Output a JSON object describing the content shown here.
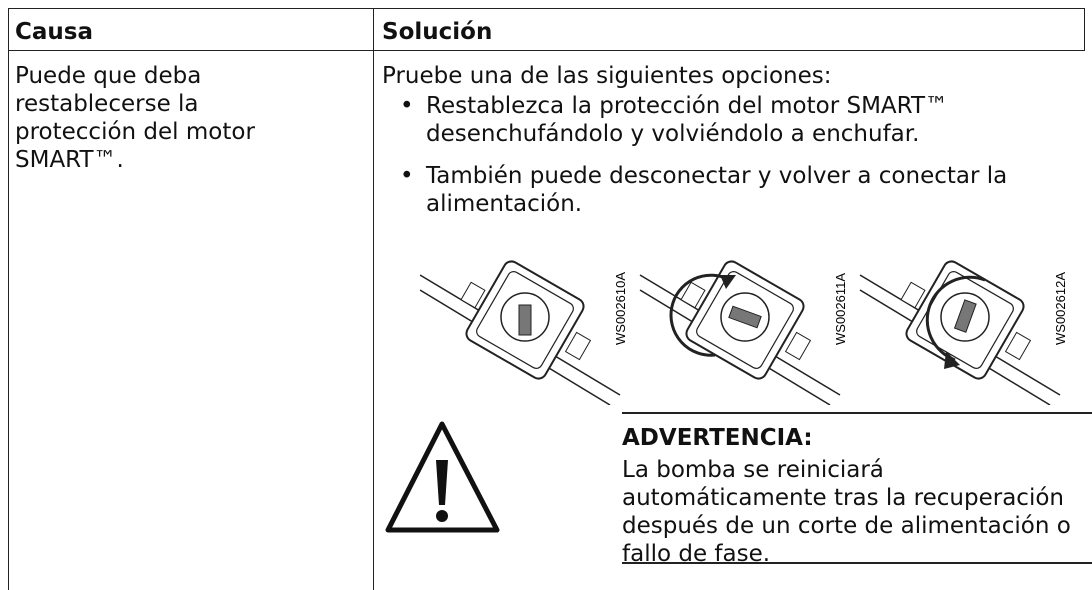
{
  "table": {
    "headers": [
      "Causa",
      "Solución"
    ],
    "rows": [
      {
        "cause": "Puede que deba restablecerse la protección del motor SMART™.",
        "solution": {
          "intro": "Pruebe una de las siguientes opciones:",
          "bullets": [
            "Restablezca la protección del motor SMART™ desenchufándolo y volviéndolo a enchufar.",
            "También puede desconectar y volver a conectar la alimentación."
          ],
          "figures": [
            "WS002610A",
            "WS002611A",
            "WS002612A"
          ],
          "warning": {
            "title": "ADVERTENCIA:",
            "text": "La bomba se reiniciará automáticamente tras la recuperación después de un corte de alimentación o fallo de fase."
          }
        }
      }
    ]
  }
}
